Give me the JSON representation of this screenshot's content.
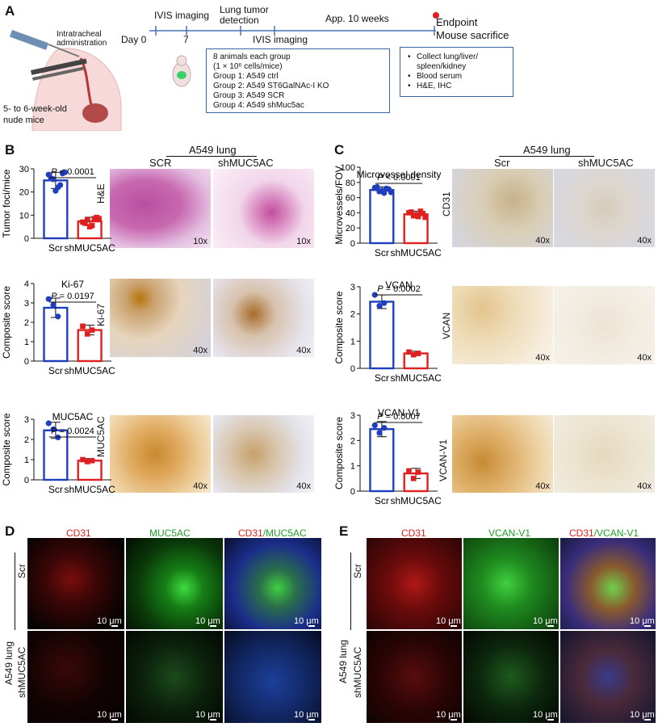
{
  "panelA": {
    "label": "A",
    "admin": "Intratracheal administration",
    "mice": "5- to 6-week-old nude mice",
    "timeline": {
      "day0": "Day 0",
      "day7": "7",
      "ivis_top": "IVIS imaging",
      "lung_detect": "Lung tumor detection",
      "app10": "App. 10 weeks",
      "ivis_bottom": "IVIS imaging",
      "endpoint": "Endpoint",
      "sacrifice": "Mouse sacrifice"
    },
    "groups_box": [
      "8 animals each group",
      "(1 × 10⁶ cells/mice)",
      "Group 1: A549 ctrl",
      "Group 2: A549 ST6GalNAc-I KO",
      "Group 3: A549 SCR",
      "Group 4: A549 shMuc5ac"
    ],
    "collect_box": [
      "Collect lung/liver/",
      "spleen/kidney",
      "Blood serum",
      "H&E, IHC"
    ],
    "colors": {
      "line": "#4a73b8",
      "endpoint": "#e02020"
    }
  },
  "panelB": {
    "label": "B",
    "header": "A549 lung",
    "col_scr": "SCR",
    "col_sh": "shMUC5AC",
    "row_he": "H&E",
    "row_ki67": "Ki-67",
    "row_muc": "MUC5AC",
    "mag10": "10x",
    "mag40": "40x"
  },
  "panelC": {
    "label": "C",
    "header": "A549 lung",
    "col_scr": "Scr",
    "col_sh": "shMUC5AC",
    "row_cd31": "CD31",
    "row_vcan": "VCAN",
    "row_vcanv1": "VCAN-V1",
    "mag40": "40x"
  },
  "panelD": {
    "label": "D",
    "col1": "CD31",
    "col2": "MUC5AC",
    "col3a": "CD31",
    "col3b": "/MUC5AC",
    "row_scr": "Scr",
    "row_sh": "shMUC5AC",
    "side": "A549 lung",
    "scale": "10 μm"
  },
  "panelE": {
    "label": "E",
    "col1": "CD31",
    "col2": "VCAN-V1",
    "col3a": "CD31",
    "col3b": "/VCAN-V1",
    "row_scr": "Scr",
    "row_sh": "shMUC5AC",
    "side": "A549 lung",
    "scale": "10 μm"
  },
  "chart_data": [
    {
      "id": "tumor-foci",
      "type": "bar",
      "title": "",
      "ylabel": "Tumor foci/mice",
      "ylim": [
        0,
        30
      ],
      "yticks": [
        0,
        10,
        20,
        30
      ],
      "categories": [
        "Scr",
        "shMUC5AC"
      ],
      "values": [
        25,
        7.3
      ],
      "errors": [
        3.5,
        1.8
      ],
      "points": [
        [
          27.5,
          25.5,
          22,
          28,
          26,
          20.5,
          23,
          28.5
        ],
        [
          7,
          8,
          5.5,
          9,
          6.5,
          5,
          8.5,
          8.5
        ]
      ],
      "pvalue": "P < 0.0001",
      "colors": [
        "#1f3fbf",
        "#e02020"
      ]
    },
    {
      "id": "ki67",
      "type": "bar",
      "title": "Ki-67",
      "ylabel": "Composite score",
      "ylim": [
        0,
        4
      ],
      "yticks": [
        0,
        1,
        2,
        3,
        4
      ],
      "categories": [
        "Scr",
        "shMUC5AC"
      ],
      "values": [
        2.75,
        1.6
      ],
      "errors": [
        0.5,
        0.25
      ],
      "points": [
        [
          3.2,
          2.9,
          2.3
        ],
        [
          1.8,
          1.4,
          1.6
        ]
      ],
      "pvalue": "P = 0.0197",
      "colors": [
        "#1f3fbf",
        "#e02020"
      ]
    },
    {
      "id": "muc5ac",
      "type": "bar",
      "title": "MUC5AC",
      "ylabel": "Composite score",
      "ylim": [
        0,
        3
      ],
      "yticks": [
        0,
        1,
        2,
        3
      ],
      "categories": [
        "Scr",
        "shMUC5AC"
      ],
      "values": [
        2.45,
        0.95
      ],
      "errors": [
        0.4,
        0.1
      ],
      "points": [
        [
          2.8,
          2.5,
          2.1
        ],
        [
          1.0,
          0.9,
          0.95
        ]
      ],
      "pvalue": "P = 0.0024",
      "colors": [
        "#1f3fbf",
        "#e02020"
      ]
    },
    {
      "id": "microvessel",
      "type": "bar",
      "title": "Microvessel density",
      "ylabel": "Microvessels/FOV",
      "ylim": [
        0,
        100
      ],
      "yticks": [
        0,
        20,
        40,
        60,
        80,
        100
      ],
      "categories": [
        "Scr",
        "shMUC5AC"
      ],
      "values": [
        70,
        38
      ],
      "errors": [
        4,
        4
      ],
      "points": [
        [
          73,
          68,
          66,
          71,
          74,
          69,
          72,
          67
        ],
        [
          40,
          36,
          35,
          39,
          41,
          37,
          42,
          34
        ]
      ],
      "pvalue": "P < 0.0001",
      "colors": [
        "#1f3fbf",
        "#e02020"
      ]
    },
    {
      "id": "vcan",
      "type": "bar",
      "title": "VCAN",
      "ylabel": "Composite score",
      "ylim": [
        0,
        3
      ],
      "yticks": [
        0,
        1,
        2,
        3
      ],
      "categories": [
        "Scr",
        "shMUC5AC"
      ],
      "values": [
        2.45,
        0.55
      ],
      "errors": [
        0.25,
        0.08
      ],
      "points": [
        [
          2.7,
          2.3,
          2.4
        ],
        [
          0.6,
          0.5,
          0.55
        ]
      ],
      "pvalue": "P = 0.0002",
      "colors": [
        "#1f3fbf",
        "#e02020"
      ]
    },
    {
      "id": "vcan-v1",
      "type": "bar",
      "title": "VCAN-V1",
      "ylabel": "Composite score",
      "ylim": [
        0,
        3
      ],
      "yticks": [
        0,
        1,
        2,
        3
      ],
      "categories": [
        "Scr",
        "shMUC5AC"
      ],
      "values": [
        2.45,
        0.7
      ],
      "errors": [
        0.3,
        0.2
      ],
      "points": [
        [
          2.6,
          2.3,
          2.5
        ],
        [
          0.8,
          0.5,
          0.75
        ]
      ],
      "pvalue": "P = 0.0007",
      "colors": [
        "#1f3fbf",
        "#e02020"
      ]
    }
  ]
}
